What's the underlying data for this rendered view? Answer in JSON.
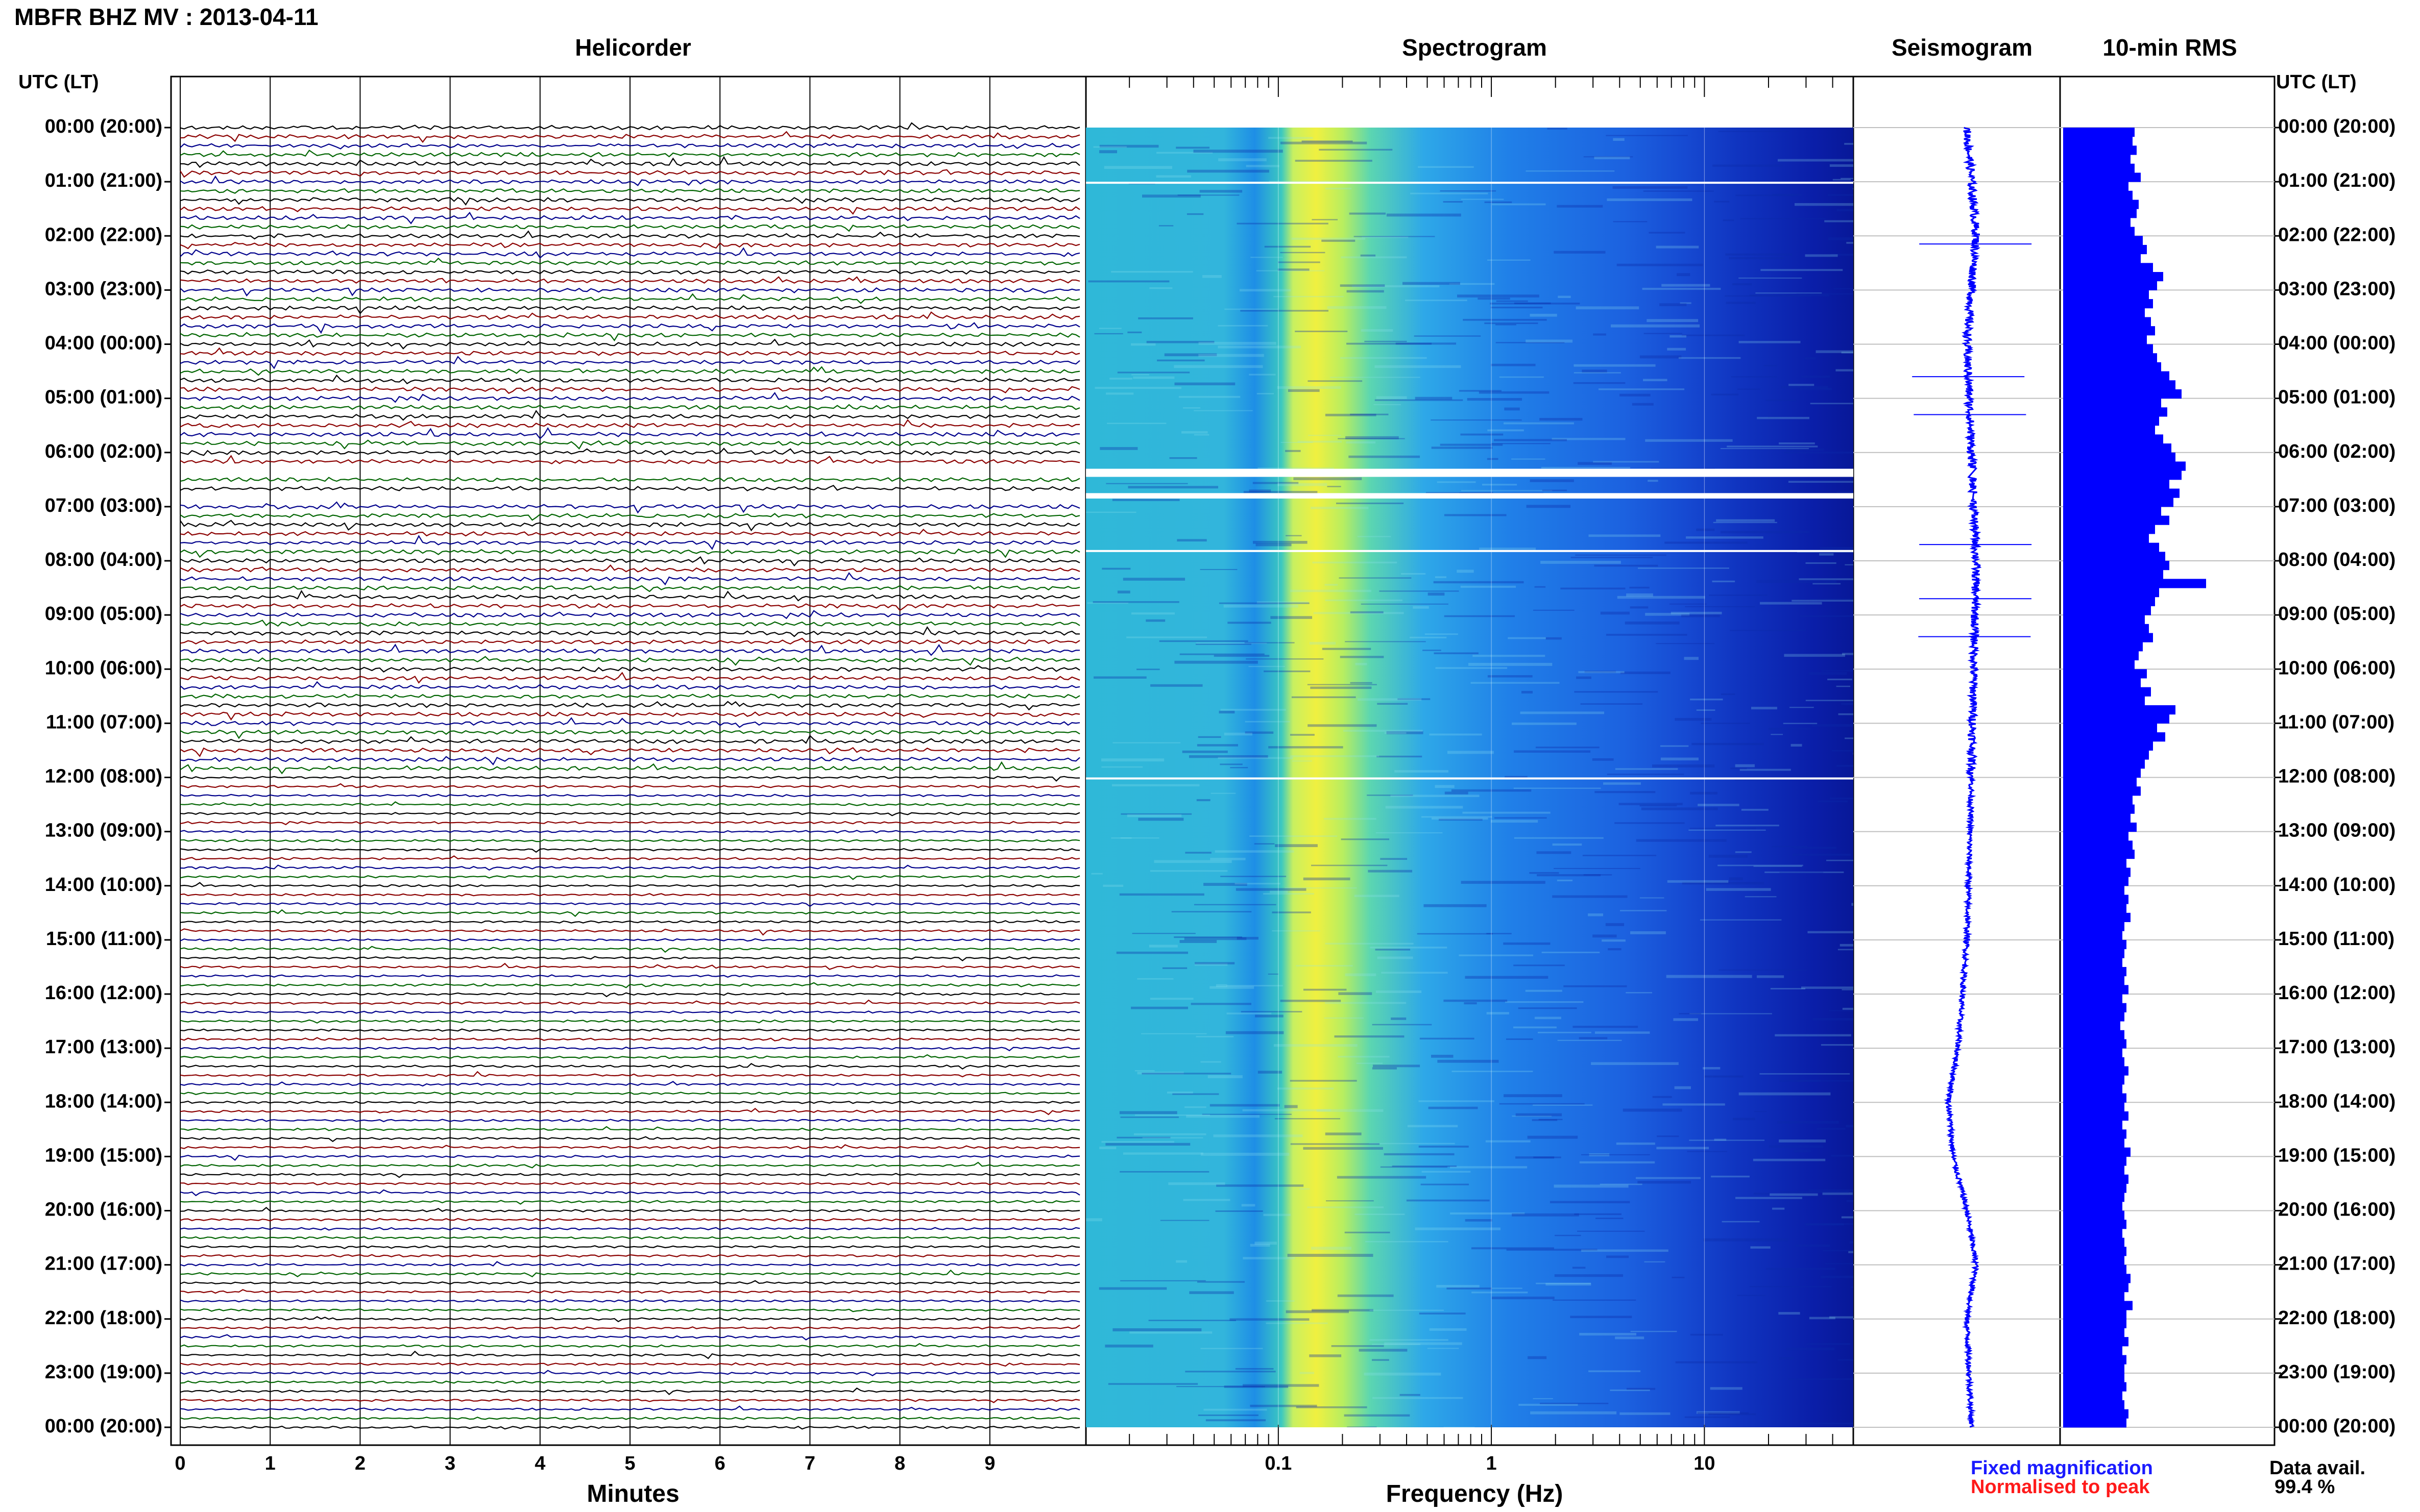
{
  "header": {
    "title": "MBFR BHZ MV : 2013-04-11"
  },
  "panels": {
    "helicorder": "Helicorder",
    "spectrogram": "Spectrogram",
    "seismogram": "Seismogram",
    "rms": "10-min RMS"
  },
  "axes": {
    "utc_label_left": "UTC (LT)",
    "utc_label_right": "UTC (LT)",
    "minutes_label": "Minutes",
    "frequency_label": "Frequency (Hz)",
    "time_ticks": [
      "00:00 (20:00)",
      "01:00 (21:00)",
      "02:00 (22:00)",
      "03:00 (23:00)",
      "04:00 (00:00)",
      "05:00 (01:00)",
      "06:00 (02:00)",
      "07:00 (03:00)",
      "08:00 (04:00)",
      "09:00 (05:00)",
      "10:00 (06:00)",
      "11:00 (07:00)",
      "12:00 (08:00)",
      "13:00 (09:00)",
      "14:00 (10:00)",
      "15:00 (11:00)",
      "16:00 (12:00)",
      "17:00 (13:00)",
      "18:00 (14:00)",
      "19:00 (15:00)",
      "20:00 (16:00)",
      "21:00 (17:00)",
      "22:00 (18:00)",
      "23:00 (19:00)",
      "00:00 (20:00)"
    ],
    "minute_ticks": [
      "0",
      "1",
      "2",
      "3",
      "4",
      "5",
      "6",
      "7",
      "8",
      "9"
    ],
    "frequency_ticks": [
      "0.1",
      "1",
      "10"
    ]
  },
  "legend": {
    "fixed": "Fixed magnification",
    "normalised": "Normalised to peak"
  },
  "availability": {
    "label": "Data avail.",
    "value": "99.4 %"
  },
  "colors": {
    "trace_cycle": [
      "#000000",
      "#8b0000",
      "#00008b",
      "#006400"
    ],
    "seismogram": "#0000ff",
    "rms_bar": "#0000ff",
    "grid": "#bfbfbf",
    "gap": "#ffffff"
  },
  "chart_data": [
    {
      "type": "line",
      "name_key": "helicorder",
      "x_unit": "minutes",
      "xlim": [
        0,
        10
      ],
      "rows_per_hour": 6,
      "total_rows": 144,
      "data_gaps_hours": [
        [
          6.3,
          6.45
        ],
        [
          6.75,
          6.85
        ]
      ]
    },
    {
      "type": "heatmap",
      "name_key": "spectrogram",
      "x_scale": "log",
      "xlim": [
        0.0125,
        50
      ],
      "ylim_hours": [
        0,
        24
      ],
      "peak_band_hz": [
        0.17,
        0.35
      ],
      "data_gaps_hours": [
        [
          1.0,
          1.02
        ],
        [
          6.3,
          6.45
        ],
        [
          6.75,
          6.85
        ],
        [
          7.8,
          7.82
        ],
        [
          12.0,
          12.02
        ]
      ]
    },
    {
      "type": "line",
      "name_key": "seismogram",
      "ylim_hours": [
        0,
        24
      ],
      "drift": [
        [
          0,
          0.0
        ],
        [
          2,
          0.1
        ],
        [
          4,
          0.0
        ],
        [
          8,
          0.1
        ],
        [
          12,
          0.05
        ],
        [
          15,
          0.0
        ],
        [
          17,
          -0.1
        ],
        [
          18,
          -0.2
        ],
        [
          19,
          -0.15
        ],
        [
          20,
          0.0
        ],
        [
          21,
          0.1
        ],
        [
          22,
          0.0
        ],
        [
          24,
          0.05
        ]
      ],
      "spikes_hours": [
        2.15,
        4.6,
        5.3,
        7.7,
        8.7,
        9.4
      ]
    },
    {
      "type": "bar",
      "name_key": "rms",
      "orientation": "horizontal",
      "bin_minutes": 10,
      "xlim": [
        0,
        1
      ],
      "values": [
        0.35,
        0.34,
        0.36,
        0.33,
        0.35,
        0.38,
        0.32,
        0.34,
        0.37,
        0.36,
        0.33,
        0.35,
        0.39,
        0.41,
        0.38,
        0.44,
        0.49,
        0.46,
        0.42,
        0.44,
        0.4,
        0.43,
        0.45,
        0.41,
        0.44,
        0.46,
        0.48,
        0.52,
        0.55,
        0.58,
        0.48,
        0.51,
        0.47,
        0.45,
        0.49,
        0.53,
        0.55,
        0.6,
        0.58,
        0.52,
        0.57,
        0.54,
        0.48,
        0.52,
        0.45,
        0.42,
        0.47,
        0.5,
        0.52,
        0.49,
        0.7,
        0.47,
        0.45,
        0.43,
        0.4,
        0.42,
        0.44,
        0.39,
        0.37,
        0.35,
        0.41,
        0.38,
        0.43,
        0.4,
        0.55,
        0.52,
        0.46,
        0.5,
        0.44,
        0.42,
        0.4,
        0.38,
        0.36,
        0.38,
        0.34,
        0.35,
        0.33,
        0.36,
        0.32,
        0.34,
        0.35,
        0.31,
        0.33,
        0.32,
        0.3,
        0.32,
        0.31,
        0.33,
        0.3,
        0.29,
        0.31,
        0.3,
        0.29,
        0.31,
        0.3,
        0.32,
        0.29,
        0.31,
        0.3,
        0.28,
        0.3,
        0.31,
        0.29,
        0.3,
        0.32,
        0.3,
        0.29,
        0.31,
        0.3,
        0.32,
        0.29,
        0.31,
        0.3,
        0.33,
        0.31,
        0.3,
        0.32,
        0.31,
        0.3,
        0.29,
        0.3,
        0.31,
        0.29,
        0.3,
        0.31,
        0.3,
        0.31,
        0.33,
        0.32,
        0.3,
        0.34,
        0.31,
        0.31,
        0.3,
        0.32,
        0.29,
        0.31,
        0.3,
        0.3,
        0.31,
        0.29,
        0.3,
        0.32,
        0.31
      ]
    }
  ]
}
